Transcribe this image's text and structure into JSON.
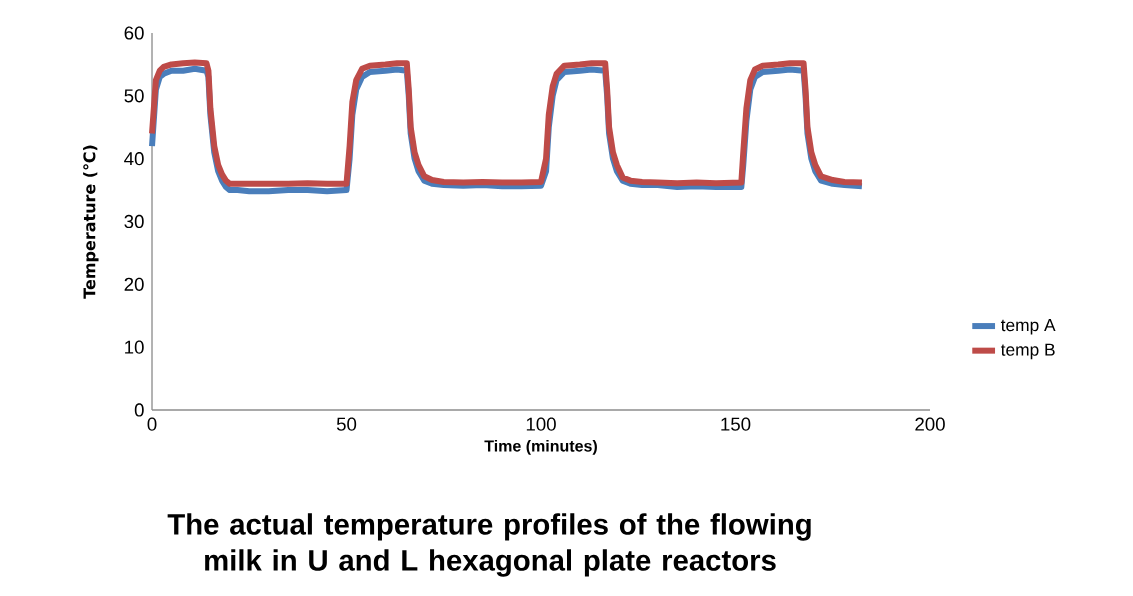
{
  "chart_data": {
    "type": "line",
    "title": "The actual temperature profiles of the flowing milk in U and L hexagonal plate reactors",
    "xlabel": "Time (minutes)",
    "ylabel": "Temperature (℃)",
    "x": [
      0,
      1,
      2,
      3,
      5,
      8,
      11,
      14,
      14.5,
      15,
      16,
      17,
      18,
      19,
      20,
      22,
      25,
      30,
      35,
      40,
      45,
      50,
      50.8,
      51.5,
      52.5,
      54,
      56,
      60,
      63,
      65.5,
      66,
      66.5,
      67.5,
      68.5,
      70,
      72,
      75,
      80,
      85,
      90,
      95,
      100,
      101.3,
      102,
      103,
      104,
      106,
      110,
      113,
      116.5,
      117,
      117.5,
      118.5,
      119.5,
      121,
      123,
      126,
      130,
      135,
      140,
      145,
      151.5,
      152,
      152.8,
      153.8,
      155,
      157,
      161,
      164,
      167.5,
      168,
      168.5,
      169.5,
      170.5,
      172,
      175,
      178,
      182.5
    ],
    "series": [
      {
        "name": "temp A",
        "color": "#4a7ebb",
        "values": [
          42,
          51,
          53,
          53.5,
          54,
          54,
          54.3,
          54,
          53,
          47,
          41,
          38,
          36.5,
          35.5,
          35,
          35,
          34.8,
          34.8,
          35,
          35,
          34.8,
          35,
          40,
          47,
          51,
          53,
          53.8,
          54,
          54.2,
          54,
          50,
          44,
          40,
          38,
          36.5,
          36,
          35.8,
          35.7,
          35.8,
          35.6,
          35.6,
          35.7,
          38,
          45,
          50,
          52.5,
          53.8,
          54,
          54.2,
          54,
          50,
          44,
          40,
          38,
          36.5,
          36,
          35.8,
          35.8,
          35.5,
          35.6,
          35.5,
          35.5,
          39,
          46,
          51,
          53,
          53.8,
          54,
          54.2,
          54,
          50,
          44,
          40,
          38,
          36.5,
          36,
          35.8,
          35.6
        ]
      },
      {
        "name": "temp B",
        "color": "#be4b48",
        "values": [
          44,
          52.5,
          54,
          54.6,
          55,
          55.2,
          55.3,
          55.2,
          54,
          48,
          42,
          39,
          37.5,
          36.5,
          36,
          36,
          36,
          36,
          36,
          36.1,
          36,
          36,
          42,
          49,
          52.5,
          54.3,
          54.8,
          55,
          55.2,
          55.2,
          51,
          45,
          41,
          39,
          37.2,
          36.6,
          36.3,
          36.2,
          36.3,
          36.2,
          36.2,
          36.3,
          40,
          47,
          51.5,
          53.5,
          54.8,
          55,
          55.2,
          55.2,
          51,
          45,
          41,
          39,
          37,
          36.5,
          36.3,
          36.2,
          36.1,
          36.2,
          36.1,
          36.2,
          41,
          48,
          52.5,
          54.2,
          54.8,
          55,
          55.2,
          55.2,
          51,
          45,
          41,
          39,
          37.2,
          36.6,
          36.3,
          36.2
        ]
      }
    ],
    "xlim": [
      0,
      200
    ],
    "xticks": [
      0,
      50,
      100,
      150,
      200
    ],
    "ylim": [
      0,
      60
    ],
    "yticks": [
      0,
      10,
      20,
      30,
      40,
      50,
      60
    ],
    "grid": false,
    "legend": "right"
  }
}
